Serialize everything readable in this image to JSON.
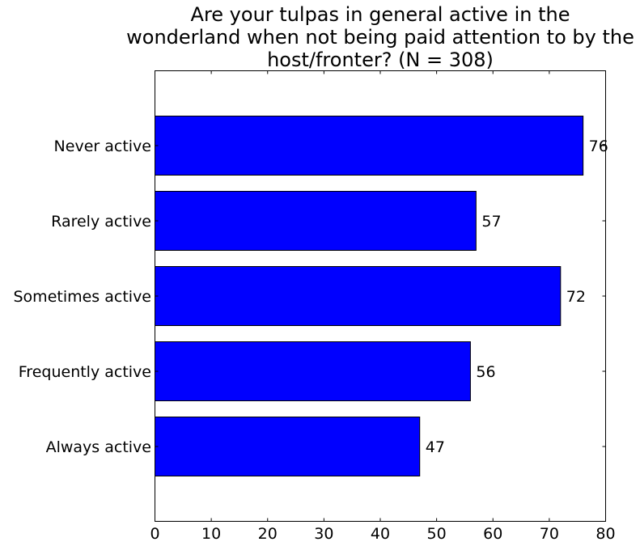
{
  "chart_data": {
    "type": "bar",
    "orientation": "horizontal",
    "title_lines": [
      "Are your tulpas in general active in the",
      "wonderland when not being paid attention to by the",
      "host/fronter? (N = 308)"
    ],
    "categories": [
      "Never active",
      "Rarely active",
      "Sometimes active",
      "Frequently active",
      "Always active"
    ],
    "values": [
      76,
      57,
      72,
      56,
      47
    ],
    "value_labels": [
      "76",
      "57",
      "72",
      "56",
      "47"
    ],
    "xlim": [
      0,
      80
    ],
    "xticks": [
      0,
      10,
      20,
      30,
      40,
      50,
      60,
      70,
      80
    ],
    "xtick_labels": [
      "0",
      "10",
      "20",
      "30",
      "40",
      "50",
      "60",
      "70",
      "80"
    ],
    "xlabel": "",
    "ylabel": "",
    "grid": false,
    "colors": {
      "bar": "#0000ff",
      "edge": "#000000"
    }
  }
}
